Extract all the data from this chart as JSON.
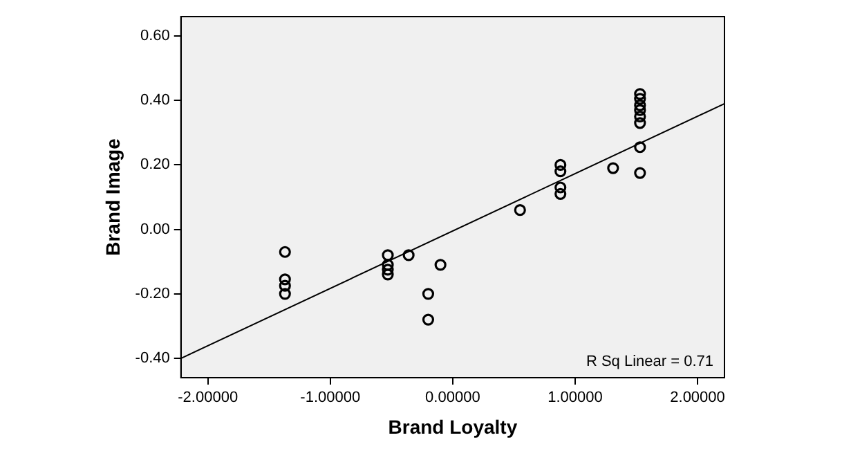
{
  "chart_data": {
    "type": "scatter",
    "xlabel": "Brand Loyalty",
    "ylabel": "Brand Image",
    "marker": "circle",
    "grid": false,
    "legend": false,
    "xlim": [
      -2.22,
      2.22
    ],
    "ylim": [
      -0.46,
      0.66
    ],
    "xticks": [
      {
        "value": -2,
        "label": "-2.00000"
      },
      {
        "value": -1,
        "label": "-1.00000"
      },
      {
        "value": 0,
        "label": "0.00000"
      },
      {
        "value": 1,
        "label": "1.00000"
      },
      {
        "value": 2,
        "label": "2.00000"
      }
    ],
    "yticks": [
      {
        "value": -0.4,
        "label": "-0.40"
      },
      {
        "value": -0.2,
        "label": "-0.20"
      },
      {
        "value": 0,
        "label": "0.00"
      },
      {
        "value": 0.2,
        "label": "0.20"
      },
      {
        "value": 0.4,
        "label": "0.40"
      },
      {
        "value": 0.6,
        "label": "0.60"
      }
    ],
    "annotations": [
      "R Sq Linear = 0.71"
    ],
    "series": [
      {
        "type": "scatter",
        "color": "#000000",
        "x": [
          -1.37,
          -1.37,
          -1.37,
          -1.37,
          -0.53,
          -0.53,
          -0.53,
          -0.53,
          -0.36,
          -0.1,
          -0.2,
          -0.2,
          0.55,
          0.88,
          0.88,
          0.88,
          0.88,
          1.31,
          1.53,
          1.53,
          1.53,
          1.53,
          1.53,
          1.53,
          1.53,
          1.53
        ],
        "values": [
          -0.07,
          -0.155,
          -0.175,
          -0.2,
          -0.08,
          -0.11,
          -0.125,
          -0.14,
          -0.08,
          -0.11,
          -0.2,
          -0.28,
          0.06,
          0.2,
          0.18,
          0.13,
          0.11,
          0.19,
          0.42,
          0.405,
          0.385,
          0.37,
          0.35,
          0.33,
          0.255,
          0.175
        ]
      },
      {
        "type": "line",
        "color": "#000000",
        "marker": "none",
        "x": [
          -2.22,
          2.22
        ],
        "values": [
          -0.4,
          0.39
        ]
      }
    ]
  }
}
